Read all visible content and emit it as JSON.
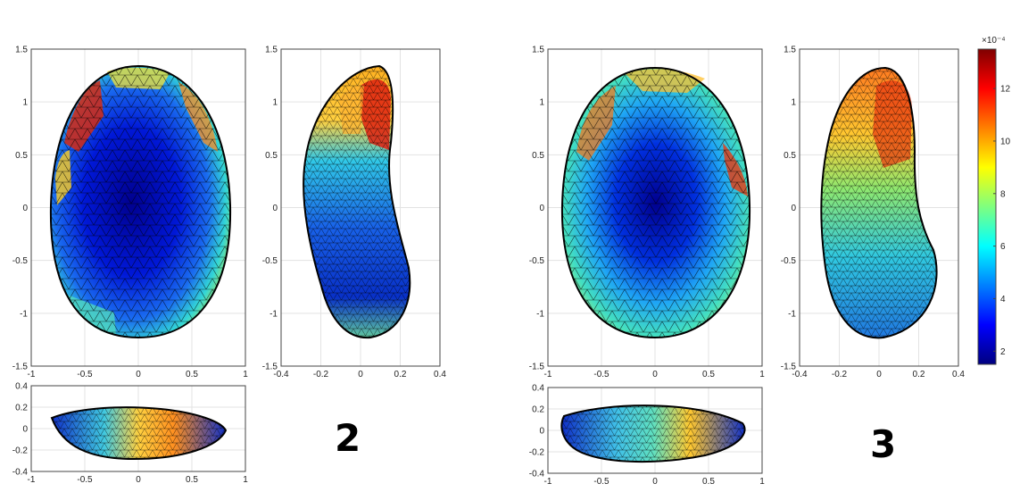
{
  "figure": {
    "colormap": "jet",
    "mesh_color": "#000000",
    "panels": [
      {
        "id": "set2-front",
        "view": "front",
        "xticks": [
          "-1",
          "-0.5",
          "0",
          "0.5",
          "1"
        ],
        "yticks": [
          "1.5",
          "1",
          "0.5",
          "0",
          "-0.5",
          "-1",
          "-1.5"
        ],
        "xlim": [
          -1,
          1
        ],
        "ylim": [
          -1.5,
          1.5
        ]
      },
      {
        "id": "set2-side",
        "view": "side",
        "xticks": [
          "-0.4",
          "-0.2",
          "0",
          "0.2",
          "0.4"
        ],
        "yticks": [
          "1.5",
          "1",
          "0.5",
          "0",
          "-0.5",
          "-1",
          "-1.5"
        ],
        "xlim": [
          -0.4,
          0.4
        ],
        "ylim": [
          -1.5,
          1.5
        ]
      },
      {
        "id": "set2-top",
        "view": "top",
        "xticks": [
          "-1",
          "-0.5",
          "0",
          "0.5",
          "1"
        ],
        "yticks": [
          "0.4",
          "0.2",
          "0",
          "-0.2",
          "-0.4"
        ],
        "xlim": [
          -1,
          1
        ],
        "ylim": [
          -0.4,
          0.4
        ]
      },
      {
        "id": "set3-front",
        "view": "front",
        "xticks": [
          "-1",
          "-0.5",
          "0",
          "0.5",
          "1"
        ],
        "yticks": [
          "1.5",
          "1",
          "0.5",
          "0",
          "-0.5",
          "-1",
          "-1.5"
        ],
        "xlim": [
          -1,
          1
        ],
        "ylim": [
          -1.5,
          1.5
        ]
      },
      {
        "id": "set3-side",
        "view": "side",
        "xticks": [
          "-0.4",
          "-0.2",
          "0",
          "0.2",
          "0.4"
        ],
        "yticks": [
          "1.5",
          "1",
          "0.5",
          "0",
          "-0.5",
          "-1",
          "-1.5"
        ],
        "xlim": [
          -0.4,
          0.4
        ],
        "ylim": [
          -1.5,
          1.5
        ]
      },
      {
        "id": "set3-top",
        "view": "top",
        "xticks": [
          "-1",
          "-0.5",
          "0",
          "0.5",
          "1"
        ],
        "yticks": [
          "0.4",
          "0.2",
          "0",
          "-0.2",
          "-0.4"
        ],
        "xlim": [
          -1,
          1
        ],
        "ylim": [
          -0.4,
          0.4
        ]
      }
    ],
    "labels": [
      "2",
      "3"
    ],
    "colorbar": {
      "exponent": "×10⁻⁴",
      "ticks": [
        "12",
        "10",
        "8",
        "6",
        "4",
        "2"
      ],
      "range": [
        1.5,
        13.5
      ]
    }
  }
}
